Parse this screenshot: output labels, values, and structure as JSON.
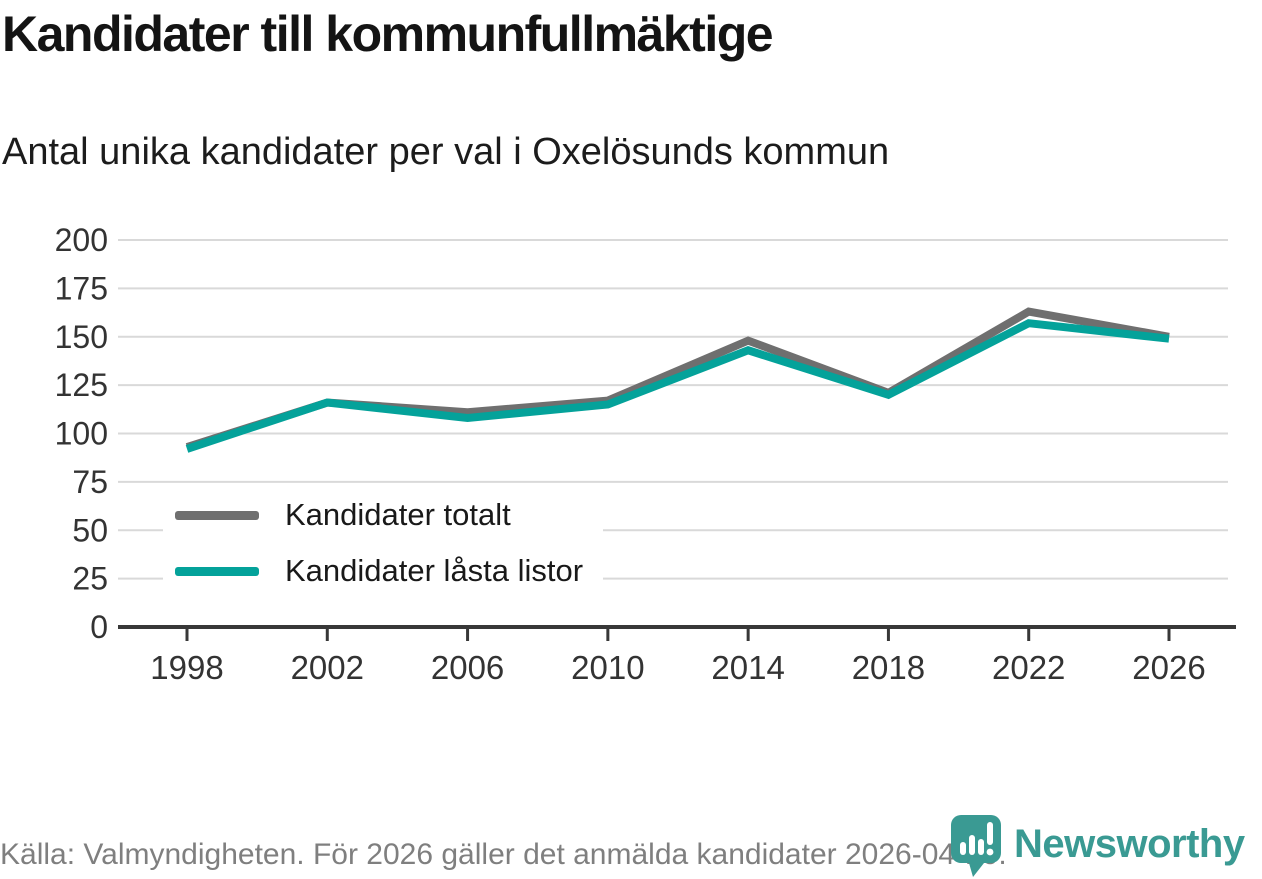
{
  "title": "Kandidater till kommunfullmäktige",
  "subtitle": "Antal unika kandidater per val i Oxelösunds kommun",
  "footer": {
    "source": "Källa: Valmyndigheten. För 2026 gäller det anmälda kandidater 2026-04-10."
  },
  "logo": {
    "brand": "Newsworthy",
    "brand_color": "#3a9a93"
  },
  "colors": {
    "series_total": "#6f6f6f",
    "series_locked": "#04a29a",
    "grid": "#d9d9d9",
    "axis": "#383838",
    "tick_label": "#333333",
    "footer_text": "#7f7f7f"
  },
  "legend": {
    "items": [
      {
        "label": "Kandidater totalt",
        "color": "#6f6f6f"
      },
      {
        "label": "Kandidater låsta listor",
        "color": "#04a29a"
      }
    ]
  },
  "chart_data": {
    "type": "line",
    "title": "Kandidater till kommunfullmäktige",
    "subtitle": "Antal unika kandidater per val i Oxelösunds kommun",
    "x": [
      1998,
      2002,
      2006,
      2010,
      2014,
      2018,
      2022,
      2026
    ],
    "series": [
      {
        "name": "Kandidater totalt",
        "color": "#6f6f6f",
        "values": [
          93,
          116,
          111,
          117,
          148,
          121,
          163,
          150
        ]
      },
      {
        "name": "Kandidater låsta listor",
        "color": "#04a29a",
        "values": [
          92,
          116,
          108,
          115,
          143,
          120,
          157,
          149
        ]
      }
    ],
    "ylim": [
      0,
      200
    ],
    "yticks": [
      0,
      25,
      50,
      75,
      100,
      125,
      150,
      175,
      200
    ],
    "xlabel": "",
    "ylabel": "",
    "grid": true,
    "legend_position": "inside-left-bottom"
  }
}
